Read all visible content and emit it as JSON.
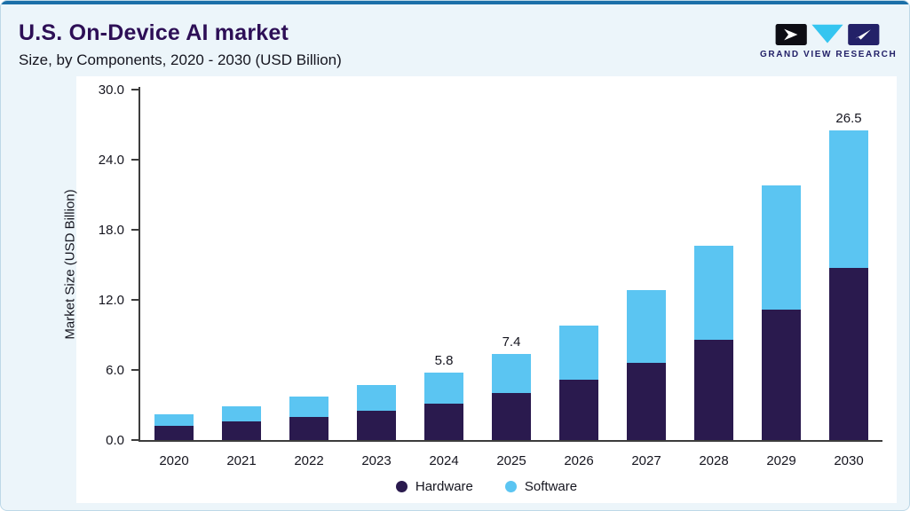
{
  "header": {
    "title": "U.S. On-Device AI market",
    "subtitle": "Size, by Components, 2020 - 2030 (USD Billion)"
  },
  "logo": {
    "text": "GRAND VIEW RESEARCH"
  },
  "colors": {
    "hardware": "#2a1a4e",
    "software": "#5bc5f2",
    "card_background": "#ecf5fa",
    "card_border": "#bdd8e7",
    "top_accent": "#1b6fa8",
    "title_text": "#2d0f56",
    "axis": "#3c3c3c"
  },
  "chart_data": {
    "type": "bar",
    "stacked": true,
    "title": "U.S. On-Device AI market",
    "subtitle": "Size, by Components, 2020 - 2030 (USD Billion)",
    "xlabel": "",
    "ylabel": "Market Size (USD Billion)",
    "ylim": [
      0,
      30
    ],
    "grid": false,
    "legend_position": "bottom",
    "y_ticks": [
      0,
      6,
      12,
      18,
      24,
      30
    ],
    "y_tick_labels": [
      "0.0",
      "6.0",
      "12.0",
      "18.0",
      "24.0",
      "30.0"
    ],
    "categories": [
      "2020",
      "2021",
      "2022",
      "2023",
      "2024",
      "2025",
      "2026",
      "2027",
      "2028",
      "2029",
      "2030"
    ],
    "series": [
      {
        "name": "Hardware",
        "color": "#2a1a4e",
        "values": [
          1.2,
          1.6,
          2.0,
          2.5,
          3.1,
          4.0,
          5.2,
          6.6,
          8.6,
          11.2,
          14.7
        ]
      },
      {
        "name": "Software",
        "color": "#5bc5f2",
        "values": [
          1.0,
          1.3,
          1.7,
          2.2,
          2.7,
          3.4,
          4.6,
          6.2,
          8.0,
          10.6,
          11.8
        ]
      }
    ],
    "totals": [
      2.2,
      2.9,
      3.7,
      4.7,
      5.8,
      7.4,
      9.8,
      12.8,
      16.6,
      21.8,
      26.5
    ],
    "total_labels": {
      "2024": "5.8",
      "2025": "7.4",
      "2030": "26.5"
    }
  }
}
